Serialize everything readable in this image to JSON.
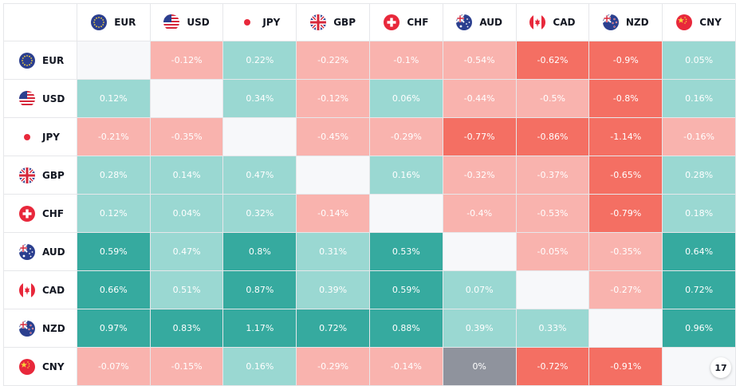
{
  "currencies": [
    {
      "code": "EUR",
      "flag": "eu-flag-icon"
    },
    {
      "code": "USD",
      "flag": "us-flag-icon"
    },
    {
      "code": "JPY",
      "flag": "jp-flag-icon"
    },
    {
      "code": "GBP",
      "flag": "gb-flag-icon"
    },
    {
      "code": "CHF",
      "flag": "ch-flag-icon"
    },
    {
      "code": "AUD",
      "flag": "au-flag-icon"
    },
    {
      "code": "CAD",
      "flag": "ca-flag-icon"
    },
    {
      "code": "NZD",
      "flag": "nz-flag-icon"
    },
    {
      "code": "CNY",
      "flag": "cn-flag-icon"
    }
  ],
  "matrix": [
    [
      null,
      "-0.12%",
      "0.22%",
      "-0.22%",
      "-0.1%",
      "-0.54%",
      "-0.62%",
      "-0.9%",
      "0.05%"
    ],
    [
      "0.12%",
      null,
      "0.34%",
      "-0.12%",
      "0.06%",
      "-0.44%",
      "-0.5%",
      "-0.8%",
      "0.16%"
    ],
    [
      "-0.21%",
      "-0.35%",
      null,
      "-0.45%",
      "-0.29%",
      "-0.77%",
      "-0.86%",
      "-1.14%",
      "-0.16%"
    ],
    [
      "0.28%",
      "0.14%",
      "0.47%",
      null,
      "0.16%",
      "-0.32%",
      "-0.37%",
      "-0.65%",
      "0.28%"
    ],
    [
      "0.12%",
      "0.04%",
      "0.32%",
      "-0.14%",
      null,
      "-0.4%",
      "-0.53%",
      "-0.79%",
      "0.18%"
    ],
    [
      "0.59%",
      "0.47%",
      "0.8%",
      "0.31%",
      "0.53%",
      null,
      "-0.05%",
      "-0.35%",
      "0.64%"
    ],
    [
      "0.66%",
      "0.51%",
      "0.87%",
      "0.39%",
      "0.59%",
      "0.07%",
      null,
      "-0.27%",
      "0.72%"
    ],
    [
      "0.97%",
      "0.83%",
      "1.17%",
      "0.72%",
      "0.88%",
      "0.39%",
      "0.33%",
      null,
      "0.96%"
    ],
    [
      "-0.07%",
      "-0.15%",
      "0.16%",
      "-0.29%",
      "-0.14%",
      "0%",
      "-0.72%",
      "-0.91%",
      null
    ]
  ],
  "colors": {
    "pos_strong": "#36aa9f",
    "pos_light": "#9ad8d2",
    "neg_strong": "#f46f63",
    "neg_light": "#f9b3ae",
    "neutral": "#8f939d",
    "empty": "#f7f8fa"
  },
  "logo": {
    "icon": "tradingview-logo-icon",
    "text": "17"
  }
}
